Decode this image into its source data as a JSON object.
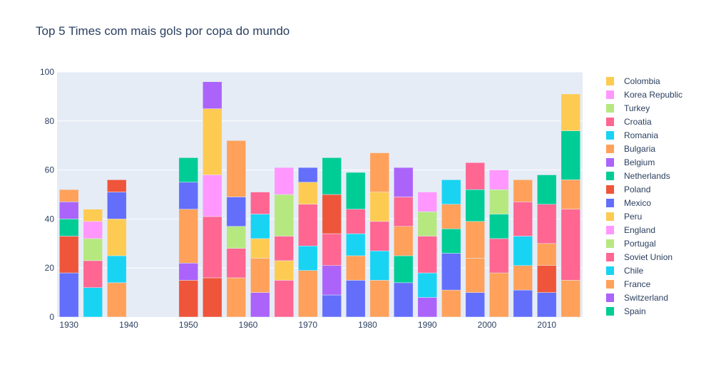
{
  "chart_data": {
    "type": "bar",
    "barmode": "stack",
    "title": "Top 5 Times com mais gols por copa do mundo",
    "xlabel": "",
    "ylabel": "",
    "xlim": [
      1928,
      2016
    ],
    "ylim": [
      0,
      100
    ],
    "x_ticks": [
      1930,
      1940,
      1950,
      1960,
      1970,
      1980,
      1990,
      2000,
      2010
    ],
    "y_ticks": [
      0,
      20,
      40,
      60,
      80,
      100
    ],
    "grid": true,
    "legend_position": "right",
    "colors": {
      "Spain": "#00CC96",
      "Switzerland": "#AB63FA",
      "France": "#FFA15A",
      "Chile": "#19D3F3",
      "Soviet Union": "#FF6692",
      "Portugal": "#B6E880",
      "England": "#FF97FF",
      "Peru": "#FECB52",
      "Mexico": "#636EFA",
      "Poland": "#EF553B",
      "Netherlands": "#00CC96",
      "Belgium": "#AB63FA",
      "Bulgaria": "#FFA15A",
      "Romania": "#19D3F3",
      "Croatia": "#FF6692",
      "Turkey": "#B6E880",
      "Korea Republic": "#FF97FF",
      "Colombia": "#FECB52"
    },
    "legend": [
      "Colombia",
      "Korea Republic",
      "Turkey",
      "Croatia",
      "Romania",
      "Bulgaria",
      "Belgium",
      "Netherlands",
      "Poland",
      "Mexico",
      "Peru",
      "England",
      "Portugal",
      "Soviet Union",
      "Chile",
      "France",
      "Switzerland",
      "Spain"
    ],
    "bars": [
      {
        "x": 1930,
        "stack": [
          {
            "series": "Mexico",
            "value": 18
          },
          {
            "series": "Poland",
            "value": 15
          },
          {
            "series": "Spain",
            "value": 7
          },
          {
            "series": "Switzerland",
            "value": 7
          },
          {
            "series": "France",
            "value": 5
          }
        ]
      },
      {
        "x": 1934,
        "stack": [
          {
            "series": "Chile",
            "value": 12
          },
          {
            "series": "Soviet Union",
            "value": 11
          },
          {
            "series": "Portugal",
            "value": 9
          },
          {
            "series": "England",
            "value": 7
          },
          {
            "series": "Peru",
            "value": 5
          }
        ]
      },
      {
        "x": 1938,
        "stack": [
          {
            "series": "France",
            "value": 14
          },
          {
            "series": "Chile",
            "value": 11
          },
          {
            "series": "Peru",
            "value": 15
          },
          {
            "series": "Mexico",
            "value": 11
          },
          {
            "series": "Poland",
            "value": 5
          }
        ]
      },
      {
        "x": 1950,
        "stack": [
          {
            "series": "Poland",
            "value": 15
          },
          {
            "series": "Switzerland",
            "value": 7
          },
          {
            "series": "France",
            "value": 22
          },
          {
            "series": "Mexico",
            "value": 11
          },
          {
            "series": "Spain",
            "value": 10
          }
        ]
      },
      {
        "x": 1954,
        "stack": [
          {
            "series": "Poland",
            "value": 16
          },
          {
            "series": "Soviet Union",
            "value": 25
          },
          {
            "series": "England",
            "value": 17
          },
          {
            "series": "Peru",
            "value": 27
          },
          {
            "series": "Switzerland",
            "value": 11
          }
        ]
      },
      {
        "x": 1958,
        "stack": [
          {
            "series": "France",
            "value": 16
          },
          {
            "series": "Soviet Union",
            "value": 12
          },
          {
            "series": "Portugal",
            "value": 9
          },
          {
            "series": "Mexico",
            "value": 12
          },
          {
            "series": "France",
            "value": 23
          }
        ]
      },
      {
        "x": 1962,
        "stack": [
          {
            "series": "Switzerland",
            "value": 10
          },
          {
            "series": "France",
            "value": 14
          },
          {
            "series": "Peru",
            "value": 8
          },
          {
            "series": "Chile",
            "value": 10
          },
          {
            "series": "Soviet Union",
            "value": 9
          }
        ]
      },
      {
        "x": 1966,
        "stack": [
          {
            "series": "Soviet Union",
            "value": 15
          },
          {
            "series": "Peru",
            "value": 8
          },
          {
            "series": "Soviet Union",
            "value": 10
          },
          {
            "series": "Portugal",
            "value": 17
          },
          {
            "series": "England",
            "value": 11
          }
        ]
      },
      {
        "x": 1970,
        "stack": [
          {
            "series": "France",
            "value": 19
          },
          {
            "series": "Chile",
            "value": 10
          },
          {
            "series": "Soviet Union",
            "value": 17
          },
          {
            "series": "Peru",
            "value": 9
          },
          {
            "series": "Mexico",
            "value": 6
          }
        ]
      },
      {
        "x": 1974,
        "stack": [
          {
            "series": "Mexico",
            "value": 9
          },
          {
            "series": "Switzerland",
            "value": 12
          },
          {
            "series": "Soviet Union",
            "value": 13
          },
          {
            "series": "Poland",
            "value": 16
          },
          {
            "series": "Spain",
            "value": 15
          }
        ]
      },
      {
        "x": 1978,
        "stack": [
          {
            "series": "Mexico",
            "value": 15
          },
          {
            "series": "France",
            "value": 10
          },
          {
            "series": "Chile",
            "value": 9
          },
          {
            "series": "Soviet Union",
            "value": 10
          },
          {
            "series": "Spain",
            "value": 15
          }
        ]
      },
      {
        "x": 1982,
        "stack": [
          {
            "series": "France",
            "value": 15
          },
          {
            "series": "Chile",
            "value": 12
          },
          {
            "series": "Soviet Union",
            "value": 12
          },
          {
            "series": "Peru",
            "value": 12
          },
          {
            "series": "France",
            "value": 16
          }
        ]
      },
      {
        "x": 1986,
        "stack": [
          {
            "series": "Mexico",
            "value": 14
          },
          {
            "series": "Spain",
            "value": 11
          },
          {
            "series": "France",
            "value": 12
          },
          {
            "series": "Soviet Union",
            "value": 12
          },
          {
            "series": "Switzerland",
            "value": 12
          }
        ]
      },
      {
        "x": 1990,
        "stack": [
          {
            "series": "Switzerland",
            "value": 8
          },
          {
            "series": "Chile",
            "value": 10
          },
          {
            "series": "Soviet Union",
            "value": 15
          },
          {
            "series": "Portugal",
            "value": 10
          },
          {
            "series": "England",
            "value": 8
          }
        ]
      },
      {
        "x": 1994,
        "stack": [
          {
            "series": "France",
            "value": 11
          },
          {
            "series": "Mexico",
            "value": 15
          },
          {
            "series": "Spain",
            "value": 10
          },
          {
            "series": "France",
            "value": 10
          },
          {
            "series": "Chile",
            "value": 10
          }
        ]
      },
      {
        "x": 1998,
        "stack": [
          {
            "series": "Mexico",
            "value": 10
          },
          {
            "series": "France",
            "value": 14
          },
          {
            "series": "France",
            "value": 15
          },
          {
            "series": "Spain",
            "value": 13
          },
          {
            "series": "Soviet Union",
            "value": 11
          }
        ]
      },
      {
        "x": 2002,
        "stack": [
          {
            "series": "France",
            "value": 18
          },
          {
            "series": "Soviet Union",
            "value": 14
          },
          {
            "series": "Spain",
            "value": 10
          },
          {
            "series": "Portugal",
            "value": 10
          },
          {
            "series": "England",
            "value": 8
          }
        ]
      },
      {
        "x": 2006,
        "stack": [
          {
            "series": "Mexico",
            "value": 11
          },
          {
            "series": "France",
            "value": 10
          },
          {
            "series": "Chile",
            "value": 12
          },
          {
            "series": "Soviet Union",
            "value": 14
          },
          {
            "series": "France",
            "value": 9
          }
        ]
      },
      {
        "x": 2010,
        "stack": [
          {
            "series": "Mexico",
            "value": 10
          },
          {
            "series": "Poland",
            "value": 11
          },
          {
            "series": "France",
            "value": 9
          },
          {
            "series": "Soviet Union",
            "value": 16
          },
          {
            "series": "Spain",
            "value": 12
          }
        ]
      },
      {
        "x": 2014,
        "stack": [
          {
            "series": "France",
            "value": 15
          },
          {
            "series": "Soviet Union",
            "value": 29
          },
          {
            "series": "France",
            "value": 12
          },
          {
            "series": "Spain",
            "value": 20
          },
          {
            "series": "Peru",
            "value": 15
          }
        ]
      }
    ]
  }
}
